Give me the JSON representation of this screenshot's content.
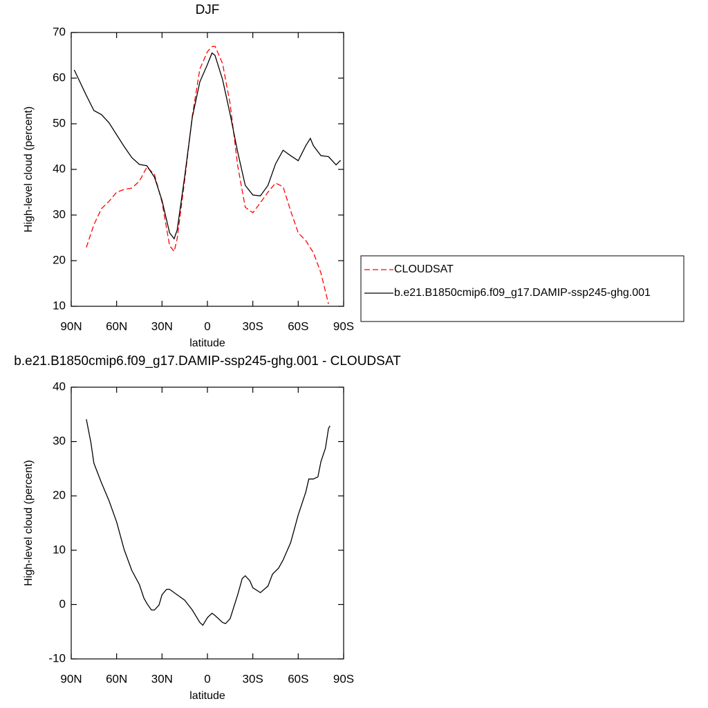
{
  "chart_data": [
    {
      "type": "line",
      "title": "DJF",
      "xlabel": "latitude",
      "ylabel": "High-level cloud (percent)",
      "xlim": [
        90,
        -90
      ],
      "xticks": [
        {
          "value": 90,
          "label": "90N"
        },
        {
          "value": 60,
          "label": "60N"
        },
        {
          "value": 30,
          "label": "30N"
        },
        0,
        {
          "value": -30,
          "label": "30S"
        },
        {
          "value": -60,
          "label": "60S"
        },
        {
          "value": -90,
          "label": "90S"
        }
      ],
      "ylim": [
        10,
        70
      ],
      "yticks": [
        10,
        20,
        30,
        40,
        50,
        60,
        70
      ],
      "legend": "right",
      "x": [
        88,
        85,
        80,
        75,
        70,
        65,
        60,
        55,
        50,
        45,
        40,
        35,
        30,
        25,
        22,
        20,
        15,
        10,
        5,
        0,
        -3,
        -5,
        -10,
        -15,
        -20,
        -25,
        -30,
        -35,
        -40,
        -45,
        -50,
        -55,
        -60,
        -65,
        -68,
        -70,
        -75,
        -80,
        -85,
        -88
      ],
      "series": [
        {
          "name": "CLOUDSAT",
          "color": "#ff0000",
          "line_style": "dashed",
          "values": [
            null,
            null,
            22.9,
            27.9,
            31.4,
            33,
            35,
            35.6,
            35.9,
            37.4,
            40.5,
            38.9,
            32.8,
            23.3,
            22,
            24.8,
            37.7,
            51.7,
            62,
            65.8,
            66.9,
            67,
            63.2,
            54.4,
            40.8,
            31.7,
            30.5,
            32.7,
            35,
            37,
            36.2,
            30.9,
            26.1,
            24.4,
            22.8,
            21.8,
            17.3,
            10.5,
            null,
            null
          ]
        },
        {
          "name": "b.e21.B1850cmip6.f09_g17.DAMIP-ssp245-ghg.001",
          "color": "#000000",
          "line_style": "solid",
          "values": [
            61.8,
            59.7,
            56.2,
            52.9,
            52,
            50.2,
            47.6,
            45,
            42.6,
            41.1,
            40.8,
            38.3,
            33.2,
            26.1,
            24.8,
            26.7,
            38.5,
            51.4,
            59.2,
            63,
            65.5,
            65,
            59.7,
            52.1,
            43.8,
            36.5,
            34.4,
            34.2,
            36.5,
            41.2,
            44.2,
            43,
            41.9,
            45.2,
            46.8,
            45.2,
            43,
            42.8,
            41,
            42
          ]
        }
      ]
    },
    {
      "type": "line",
      "title": "b.e21.B1850cmip6.f09_g17.DAMIP-ssp245-ghg.001 - CLOUDSAT",
      "xlabel": "latitude",
      "ylabel": "High-level cloud (percent)",
      "xlim": [
        90,
        -90
      ],
      "xticks": [
        {
          "value": 90,
          "label": "90N"
        },
        {
          "value": 60,
          "label": "60N"
        },
        {
          "value": 30,
          "label": "30N"
        },
        0,
        {
          "value": -30,
          "label": "30S"
        },
        {
          "value": -60,
          "label": "60S"
        },
        {
          "value": -90,
          "label": "90S"
        }
      ],
      "ylim": [
        -10,
        40
      ],
      "yticks": [
        -10,
        0,
        10,
        20,
        30,
        40
      ],
      "x": [
        80,
        77,
        75,
        70,
        65,
        60,
        55,
        50,
        45,
        42,
        40,
        37,
        35,
        32,
        30,
        27,
        25,
        20,
        15,
        10,
        5,
        3,
        0,
        -3,
        -5,
        -10,
        -12,
        -15,
        -20,
        -23,
        -25,
        -28,
        -30,
        -35,
        -40,
        -43,
        -47,
        -50,
        -55,
        -60,
        -65,
        -67,
        -70,
        -73,
        -75,
        -78,
        -80,
        -81
      ],
      "series": [
        {
          "color": "#000000",
          "line_style": "solid",
          "values": [
            34.1,
            29.8,
            26,
            22.4,
            19.1,
            15.2,
            10.1,
            6.3,
            3.7,
            1.2,
            0.2,
            -1,
            -1,
            -0.1,
            1.8,
            2.8,
            2.8,
            1.8,
            0.8,
            -1,
            -3.3,
            -3.8,
            -2.4,
            -1.6,
            -2,
            -3.3,
            -3.5,
            -2.6,
            1.8,
            4.8,
            5.3,
            4.4,
            3.1,
            2.2,
            3.4,
            5.6,
            6.7,
            8.2,
            11.4,
            16.5,
            20.7,
            23.1,
            23.1,
            23.5,
            26.3,
            28.8,
            32.4,
            32.9
          ]
        }
      ]
    }
  ]
}
